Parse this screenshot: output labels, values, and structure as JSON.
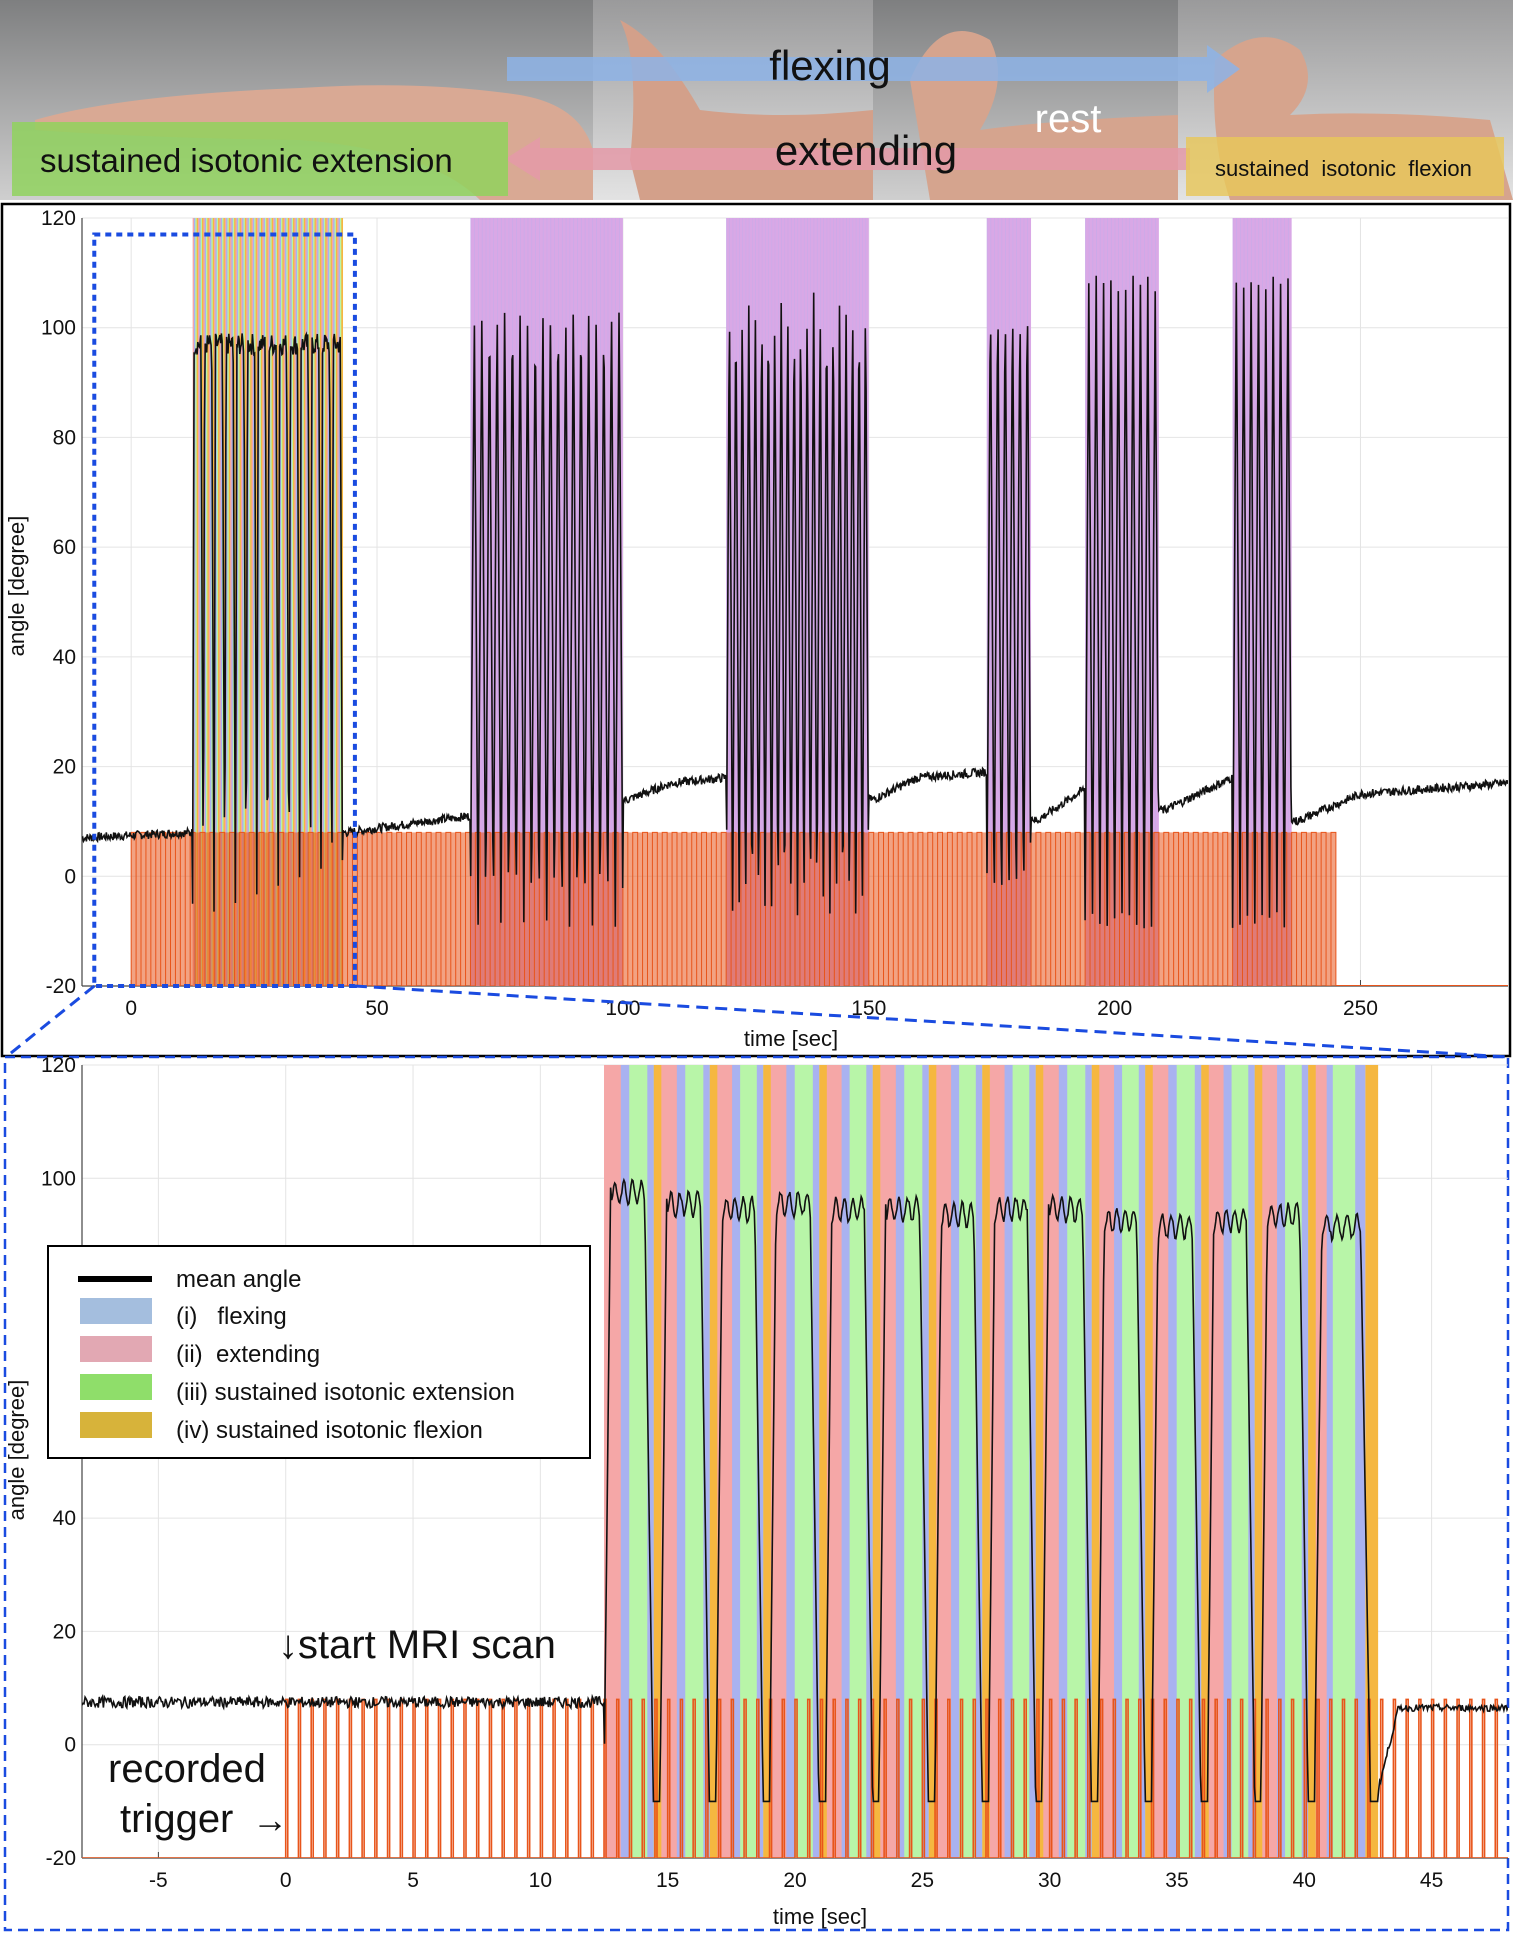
{
  "banner": {
    "photo_labels": {
      "flexing": "flexing",
      "extending": "extending",
      "rest": "rest",
      "sustained_extension": "sustained isotonic extension",
      "sustained_flexion": "sustained  isotonic  flexion"
    }
  },
  "chart_data": [
    {
      "type": "line",
      "title": "",
      "xlabel": "time [sec]",
      "ylabel": "angle [degree]",
      "xlim": [
        -10,
        280
      ],
      "ylim": [
        -20,
        120
      ],
      "xticks": [
        0,
        50,
        100,
        150,
        200,
        250
      ],
      "yticks": [
        -20,
        0,
        20,
        40,
        60,
        80,
        100,
        120
      ],
      "grid": true,
      "trigger": {
        "start": 0,
        "end": 245,
        "period": 2.0,
        "low": -20,
        "high": 8
      },
      "task_blocks": [
        {
          "start": 12.5,
          "end": 43,
          "cycles": 14,
          "peak": 97,
          "style": "green-multiphase"
        },
        {
          "start": 69,
          "end": 100,
          "cycles": 20,
          "peak": 105,
          "style": "purple"
        },
        {
          "start": 121,
          "end": 150,
          "cycles": 22,
          "peak": 106,
          "style": "purple"
        },
        {
          "start": 174,
          "end": 183,
          "cycles": 6,
          "peak": 108,
          "style": "purple"
        },
        {
          "start": 194,
          "end": 209,
          "cycles": 10,
          "peak": 108,
          "style": "purple"
        },
        {
          "start": 224,
          "end": 236,
          "cycles": 8,
          "peak": 108,
          "style": "purple"
        }
      ],
      "rest_baseline": [
        {
          "x": -10,
          "y": 7
        },
        {
          "x": 12,
          "y": 8
        },
        {
          "x": 44,
          "y": 8
        },
        {
          "x": 60,
          "y": 10
        },
        {
          "x": 69,
          "y": 11
        },
        {
          "x": 101,
          "y": 14
        },
        {
          "x": 110,
          "y": 17
        },
        {
          "x": 121,
          "y": 18
        },
        {
          "x": 151,
          "y": 14
        },
        {
          "x": 160,
          "y": 18
        },
        {
          "x": 174,
          "y": 19
        },
        {
          "x": 184,
          "y": 10
        },
        {
          "x": 194,
          "y": 16
        },
        {
          "x": 210,
          "y": 12
        },
        {
          "x": 224,
          "y": 18
        },
        {
          "x": 237,
          "y": 10
        },
        {
          "x": 250,
          "y": 15
        },
        {
          "x": 280,
          "y": 17
        }
      ],
      "zoom_box": {
        "x0": -7.5,
        "x1": 45.5,
        "y0": -20,
        "y1": 117
      }
    },
    {
      "type": "line",
      "title": "",
      "xlabel": "time [sec]",
      "ylabel": "angle [degree]",
      "xlim": [
        -8,
        48
      ],
      "ylim": [
        -20,
        120
      ],
      "xticks": [
        -5,
        0,
        5,
        10,
        15,
        20,
        25,
        30,
        35,
        40,
        45
      ],
      "yticks": [
        -20,
        0,
        20,
        40,
        100,
        120
      ],
      "grid": true,
      "trigger": {
        "start": 0,
        "end": 48,
        "period": 0.5,
        "low": -20,
        "high": 8
      },
      "baseline_pre": 7.5,
      "baseline_post": 7.5,
      "task_start": 12.5,
      "cycles": [
        {
          "start": 12.5,
          "peak": 100
        },
        {
          "start": 14.7,
          "peak": 98
        },
        {
          "start": 16.9,
          "peak": 97
        },
        {
          "start": 19.0,
          "peak": 98
        },
        {
          "start": 21.2,
          "peak": 97
        },
        {
          "start": 23.3,
          "peak": 97
        },
        {
          "start": 25.5,
          "peak": 96
        },
        {
          "start": 27.6,
          "peak": 97
        },
        {
          "start": 29.7,
          "peak": 97
        },
        {
          "start": 31.9,
          "peak": 95
        },
        {
          "start": 34.0,
          "peak": 94
        },
        {
          "start": 36.2,
          "peak": 95
        },
        {
          "start": 38.3,
          "peak": 96
        },
        {
          "start": 40.4,
          "peak": 94
        }
      ],
      "task_end": 42.9,
      "legend": {
        "placement": "middle-left",
        "entries": [
          {
            "label": "mean angle",
            "kind": "line",
            "color": "#000000"
          },
          {
            "label": "(i)   flexing",
            "kind": "patch",
            "color": "#a4bede"
          },
          {
            "label": "(ii)  extending",
            "kind": "patch",
            "color": "#e2a8b3"
          },
          {
            "label": "(iii) sustained isotonic extension",
            "kind": "patch",
            "color": "#8fde6a"
          },
          {
            "label": "(iv) sustained isotonic flexion",
            "kind": "patch",
            "color": "#d7b33a"
          }
        ]
      },
      "annotations": {
        "start_scan": "↓start MRI scan",
        "recorded_line1": "recorded",
        "recorded_line2": "trigger",
        "arrow": "→"
      }
    }
  ],
  "colors": {
    "trigger": "#e8551b",
    "flexing": "#a9b2f0",
    "extending": "#f5a7a7",
    "sustained_ext": "#b8f5a8",
    "sustained_flex": "#f5b740",
    "purple_block": "#d9a8e6",
    "zoom_box": "#1a4be0",
    "grid": "#e4e4e4"
  }
}
